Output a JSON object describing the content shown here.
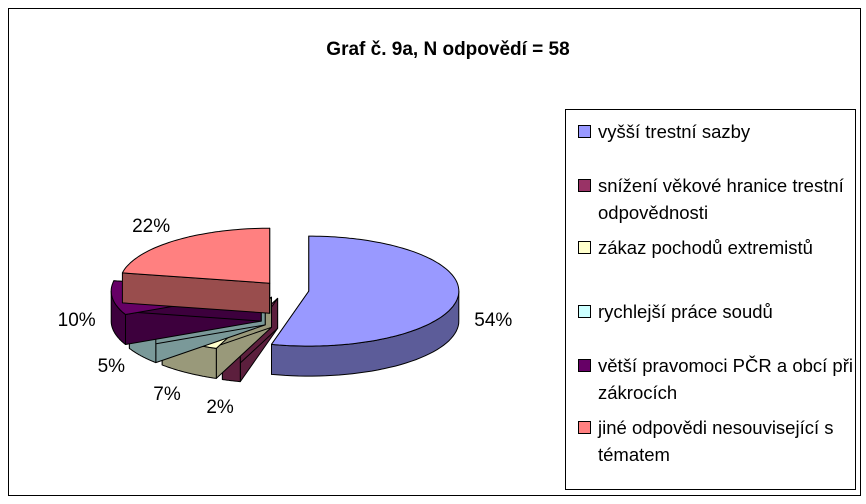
{
  "chart_data": {
    "type": "pie3d",
    "title": "Graf č. 9a, N odpovědí = 58",
    "categories": [
      "vyšší trestní sazby",
      "snížení věkové hranice trestní odpovědnosti",
      "zákaz pochodů extremistů",
      "rychlejší práce soudů",
      "větší pravomoci PČR a obcí při zákrocích",
      "jiné odpovědi nesouvisející s tématem"
    ],
    "values": [
      54,
      2,
      7,
      5,
      10,
      22
    ],
    "value_labels": [
      "54%",
      "2%",
      "7%",
      "5%",
      "10%",
      "22%"
    ],
    "colors": [
      "#9999ff",
      "#993366",
      "#ffffcc",
      "#ccffff",
      "#660066",
      "#ff8080"
    ],
    "legend": "right"
  }
}
